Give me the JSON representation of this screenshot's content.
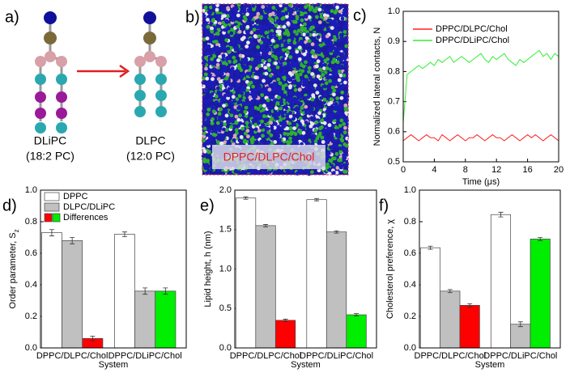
{
  "panel_a": {
    "label": "a)",
    "left": {
      "name": "DLiPC",
      "composition": "(18:2 PC)"
    },
    "right": {
      "name": "DLPC",
      "composition": "(12:0 PC)"
    }
  },
  "panel_b": {
    "label": "b)",
    "caption": "DPPC/DLPC/Chol"
  },
  "chart_data": [
    {
      "type": "line",
      "panel_label": "c)",
      "xlabel": "Time (μs)",
      "ylabel": "Normalized lateral contacts, N",
      "x": [
        0,
        0.5,
        1,
        1.5,
        2,
        2.5,
        3,
        3.5,
        4,
        4.5,
        5,
        5.5,
        6,
        6.5,
        7,
        7.5,
        8,
        8.5,
        9,
        9.5,
        10,
        10.5,
        11,
        11.5,
        12,
        12.5,
        13,
        13.5,
        14,
        14.5,
        15,
        15.5,
        16,
        16.5,
        17,
        17.5,
        18,
        18.5,
        19,
        19.5,
        20
      ],
      "series": [
        {
          "name": "DPPC/DLPC/Chol",
          "color": "#ff2020",
          "values": [
            0.57,
            0.58,
            0.59,
            0.58,
            0.57,
            0.58,
            0.59,
            0.58,
            0.58,
            0.57,
            0.59,
            0.58,
            0.57,
            0.58,
            0.59,
            0.58,
            0.57,
            0.58,
            0.58,
            0.59,
            0.58,
            0.57,
            0.58,
            0.59,
            0.58,
            0.58,
            0.57,
            0.58,
            0.59,
            0.58,
            0.57,
            0.58,
            0.59,
            0.58,
            0.59,
            0.58,
            0.57,
            0.58,
            0.59,
            0.58,
            0.57
          ]
        },
        {
          "name": "DPPC/DLiPC/Chol",
          "color": "#33ee33",
          "values": [
            0.63,
            0.79,
            0.8,
            0.81,
            0.82,
            0.81,
            0.82,
            0.83,
            0.82,
            0.84,
            0.83,
            0.84,
            0.85,
            0.83,
            0.84,
            0.85,
            0.84,
            0.83,
            0.84,
            0.85,
            0.86,
            0.84,
            0.83,
            0.85,
            0.84,
            0.85,
            0.86,
            0.84,
            0.83,
            0.82,
            0.84,
            0.83,
            0.84,
            0.85,
            0.86,
            0.87,
            0.85,
            0.86,
            0.84,
            0.86,
            0.85
          ]
        }
      ],
      "xlim": [
        0,
        20
      ],
      "xticks": [
        0,
        4,
        8,
        12,
        16,
        20
      ],
      "ylim": [
        0.5,
        1.0
      ],
      "yticks": [
        0.5,
        0.6,
        0.7,
        0.8,
        0.9,
        {
          "value": 1.0,
          "label": "1.0"
        }
      ],
      "legend": true
    },
    {
      "type": "bar",
      "panel_label": "d)",
      "xlabel": "System",
      "ylabel": "Order parameter, S",
      "ylabel_sub": "z",
      "categories": [
        "DPPC/DLPC/Chol",
        "DPPC/DLiPC/Chol"
      ],
      "series": [
        {
          "name": "DPPC",
          "color": "#ffffff",
          "values": [
            0.73,
            0.72
          ],
          "errors": [
            0.02,
            0.015
          ]
        },
        {
          "name": "DLPC/DLiPC",
          "color": "#c0c0c0",
          "values": [
            0.68,
            0.36
          ],
          "errors": [
            0.02,
            0.02
          ]
        },
        {
          "name": "Differences",
          "colors": [
            "#ff0000",
            "#00ee00"
          ],
          "values": [
            0.06,
            0.36
          ],
          "errors": [
            0.015,
            0.02
          ]
        }
      ],
      "ylim": [
        0,
        1.0
      ],
      "yticks": [
        {
          "value": 0,
          "label": "0.0"
        },
        0.2,
        0.4,
        0.6,
        0.8,
        {
          "value": 1.0,
          "label": "1.0"
        }
      ],
      "legend": true
    },
    {
      "type": "bar",
      "panel_label": "e)",
      "xlabel": "System",
      "ylabel": "Lipid height, h (nm)",
      "categories": [
        "DPPC/DLPC/Chol",
        "DPPC/DLiPC/Chol"
      ],
      "series": [
        {
          "color": "#ffffff",
          "values": [
            1.9,
            1.88
          ],
          "errors": [
            0.015,
            0.015
          ]
        },
        {
          "color": "#c0c0c0",
          "values": [
            1.55,
            1.47
          ],
          "errors": [
            0.015,
            0.015
          ]
        },
        {
          "colors": [
            "#ff0000",
            "#00ee00"
          ],
          "values": [
            0.35,
            0.42
          ],
          "errors": [
            0.015,
            0.015
          ]
        }
      ],
      "ylim": [
        0,
        2.0
      ],
      "yticks": [
        {
          "value": 0,
          "label": "0.0"
        },
        0.5,
        {
          "value": 1.0,
          "label": "1.0"
        },
        1.5,
        {
          "value": 2.0,
          "label": "2.0"
        }
      ],
      "legend": false
    },
    {
      "type": "bar",
      "panel_label": "f)",
      "xlabel": "System",
      "ylabel": "Cholesterol preference, χ",
      "categories": [
        "DPPC/DLPC/Chol",
        "DPPC/DLiPC/Chol"
      ],
      "series": [
        {
          "color": "#ffffff",
          "values": [
            0.635,
            0.845
          ],
          "errors": [
            0.01,
            0.015
          ]
        },
        {
          "color": "#c0c0c0",
          "values": [
            0.36,
            0.15
          ],
          "errors": [
            0.01,
            0.015
          ]
        },
        {
          "colors": [
            "#ff0000",
            "#00ee00"
          ],
          "values": [
            0.27,
            0.69
          ],
          "errors": [
            0.01,
            0.01
          ]
        }
      ],
      "ylim": [
        0,
        1.0
      ],
      "yticks": [
        {
          "value": 0,
          "label": "0.0"
        },
        0.2,
        0.4,
        0.6,
        0.8,
        {
          "value": 1.0,
          "label": "1.0"
        }
      ],
      "legend": false
    }
  ]
}
